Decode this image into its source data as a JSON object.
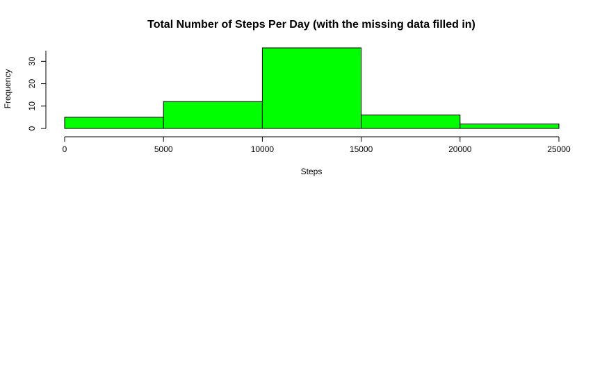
{
  "chart_data": {
    "type": "bar",
    "title": "Total Number of Steps Per Day (with the missing data filled in)",
    "xlabel": "Steps",
    "ylabel": "Frequency",
    "bins": [
      {
        "start": 0,
        "end": 5000,
        "count": 5
      },
      {
        "start": 5000,
        "end": 10000,
        "count": 12
      },
      {
        "start": 10000,
        "end": 15000,
        "count": 36
      },
      {
        "start": 15000,
        "end": 20000,
        "count": 6
      },
      {
        "start": 20000,
        "end": 25000,
        "count": 2
      }
    ],
    "xlim": [
      0,
      25000
    ],
    "ylim": [
      0,
      36
    ],
    "xticks": [
      0,
      5000,
      10000,
      15000,
      20000,
      25000
    ],
    "xtick_labels": [
      "0",
      "5000",
      "10000",
      "15000",
      "20000",
      "25000"
    ],
    "yticks": [
      0,
      10,
      20,
      30
    ],
    "ytick_labels": [
      "0",
      "10",
      "20",
      "30"
    ],
    "bar_color": "#00ff00",
    "grid": false,
    "legend": "none"
  }
}
